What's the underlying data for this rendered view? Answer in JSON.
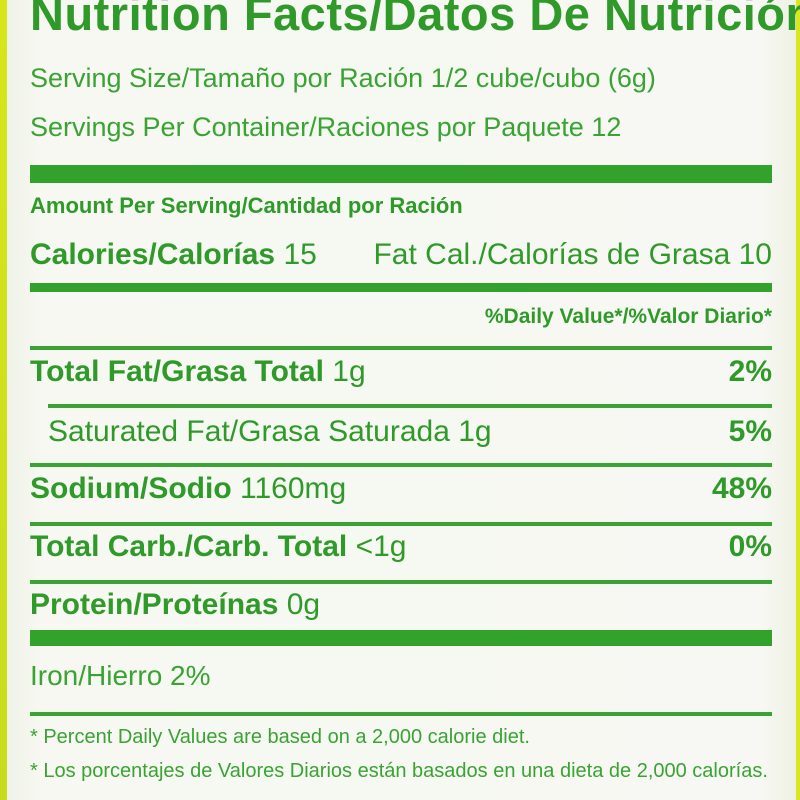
{
  "title": "Nutrition Facts/Datos De Nutrición",
  "serving": {
    "size_label": "Serving Size/Tamaño por Ración 1/2 cube/cubo (6g)",
    "per_container_label": "Servings Per Container/Raciones por Paquete 12"
  },
  "amount_header": "Amount Per Serving/Cantidad por Ración",
  "calories": {
    "label": "Calories/Calorías",
    "value": "15",
    "fat_cal_label": "Fat Cal./Calorías de Grasa",
    "fat_cal_value": "10"
  },
  "daily_value_header": "%Daily Value*/%Valor Diario*",
  "nutrients": [
    {
      "label": "Total Fat/Grasa Total",
      "amount": "1g",
      "dv": "2%"
    },
    {
      "label": "Saturated Fat/Grasa Saturada",
      "amount": "1g",
      "dv": "5%"
    },
    {
      "label": "Sodium/Sodio",
      "amount": "1160mg",
      "dv": "48%"
    },
    {
      "label": "Total Carb./Carb. Total",
      "amount": "<1g",
      "dv": "0%"
    },
    {
      "label": "Protein/Proteínas",
      "amount": "0g",
      "dv": ""
    }
  ],
  "iron": "Iron/Hierro 2%",
  "footnotes": [
    "* Percent Daily Values are based on a 2,000 calorie diet.",
    "* Los porcentajes de Valores Diarios están basados en una dieta de 2,000 calorías."
  ],
  "colors": {
    "text_green": "#2f9a2a",
    "accent_yellow": "#d6e61a"
  }
}
